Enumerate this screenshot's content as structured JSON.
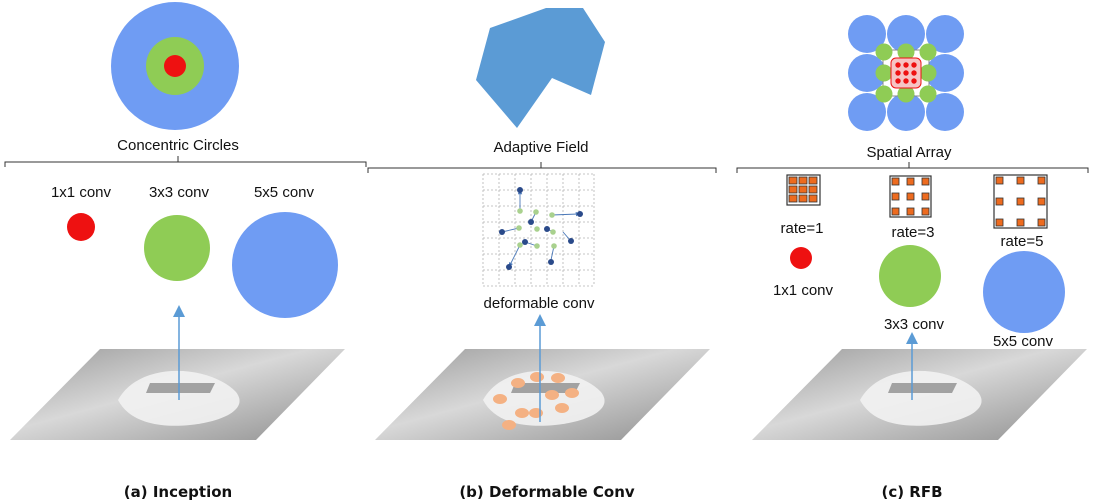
{
  "colors": {
    "small": "#ee1111",
    "medium": "#8fcc55",
    "large": "#6f9cf3",
    "adaptive_field": "#5b9bd5",
    "sample_points": "#f4b183",
    "kernel_cells": "#ed6b1f",
    "arrow": "#5b9bd5",
    "photo": "#bdbdbd"
  },
  "panels": [
    {
      "id": "inception",
      "top_label": "Concentric Circles",
      "branches": [
        "1x1 conv",
        "3x3 conv",
        "5x5 conv"
      ],
      "caption": "(a) Inception"
    },
    {
      "id": "deformable",
      "top_label": "Adaptive Field",
      "grid_label": "deformable conv",
      "caption": "(b) Deformable Conv"
    },
    {
      "id": "rfb",
      "top_label": "Spatial Array",
      "rates": [
        "rate=1",
        "rate=3",
        "rate=5"
      ],
      "branches": [
        "1x1 conv",
        "3x3 conv",
        "5x5 conv"
      ],
      "caption": "(c) RFB"
    }
  ]
}
